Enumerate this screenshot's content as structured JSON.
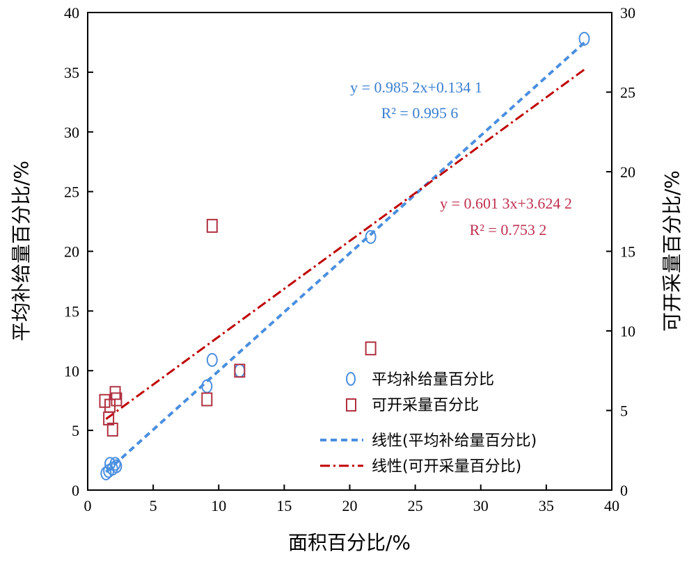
{
  "chart_data": {
    "type": "scatter",
    "xlabel": "面积百分比/%",
    "ylabel_left": "平均补给量百分比/%",
    "ylabel_right": "可开采量百分比/%",
    "xlim": [
      0,
      40
    ],
    "ylim_left": [
      0,
      40
    ],
    "ylim_right": [
      0,
      30
    ],
    "x_ticks": [
      0,
      5,
      10,
      15,
      20,
      25,
      30,
      35,
      40
    ],
    "y_left_ticks": [
      0,
      5,
      10,
      15,
      20,
      25,
      30,
      35,
      40
    ],
    "y_right_ticks": [
      0,
      5,
      10,
      15,
      20,
      25,
      30
    ],
    "grid": false,
    "legend_position": "lower-right",
    "series": [
      {
        "name": "平均补给量百分比",
        "axis": "left",
        "marker": "circle",
        "color": "#4a8fe0",
        "points": [
          [
            1.4,
            1.4
          ],
          [
            1.6,
            1.6
          ],
          [
            1.7,
            2.2
          ],
          [
            1.9,
            1.8
          ],
          [
            2.1,
            2.2
          ],
          [
            2.2,
            2.0
          ],
          [
            9.1,
            8.7
          ],
          [
            9.5,
            10.9
          ],
          [
            11.6,
            10.0
          ],
          [
            21.6,
            21.2
          ],
          [
            37.9,
            37.8
          ]
        ]
      },
      {
        "name": "可开采量百分比",
        "axis": "right",
        "marker": "square",
        "color": "#b03040",
        "points": [
          [
            1.3,
            5.6
          ],
          [
            1.6,
            4.5
          ],
          [
            1.7,
            5.3
          ],
          [
            1.9,
            3.8
          ],
          [
            2.1,
            6.1
          ],
          [
            2.2,
            5.7
          ],
          [
            9.1,
            5.7
          ],
          [
            9.5,
            16.6
          ],
          [
            11.6,
            7.5
          ],
          [
            21.6,
            8.9
          ]
        ]
      }
    ],
    "fits": [
      {
        "name": "线性(平均补给量百分比)",
        "axis": "left",
        "style": "dashed",
        "color": "#4a8fe0",
        "slope": 0.9852,
        "intercept": 0.1341,
        "x_range": [
          1.4,
          37.9
        ],
        "equation_label": "y = 0.985 2x+0.134 1",
        "r2_label": "R² = 0.995 6",
        "label_color": "#3a7fd0"
      },
      {
        "name": "线性(可开采量百分比)",
        "axis": "right",
        "style": "dash-dot",
        "color": "#c00000",
        "slope": 0.6013,
        "intercept": 3.6242,
        "x_range": [
          1.4,
          37.9
        ],
        "equation_label": "y = 0.601 3x+3.624 2",
        "r2_label": "R² = 0.753 2",
        "label_color": "#c03050"
      }
    ]
  }
}
